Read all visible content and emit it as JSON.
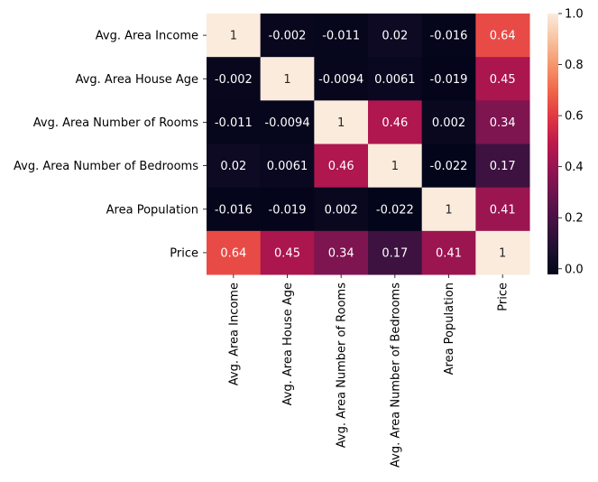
{
  "chart_data": {
    "type": "heatmap",
    "title": "",
    "xlabel": "",
    "ylabel": "",
    "row_labels": [
      "Avg. Area Income",
      "Avg. Area House Age",
      "Avg. Area Number of Rooms",
      "Avg. Area Number of Bedrooms",
      "Area Population",
      "Price"
    ],
    "col_labels": [
      "Avg. Area Income",
      "Avg. Area House Age",
      "Avg. Area Number of Rooms",
      "Avg. Area Number of Bedrooms",
      "Area Population",
      "Price"
    ],
    "values": [
      [
        1,
        -0.002,
        -0.011,
        0.02,
        -0.016,
        0.64
      ],
      [
        -0.002,
        1,
        -0.0094,
        0.0061,
        -0.019,
        0.45
      ],
      [
        -0.011,
        -0.0094,
        1,
        0.46,
        0.002,
        0.34
      ],
      [
        0.02,
        0.0061,
        0.46,
        1,
        -0.022,
        0.17
      ],
      [
        -0.016,
        -0.019,
        0.002,
        -0.022,
        1,
        0.41
      ],
      [
        0.64,
        0.45,
        0.34,
        0.17,
        0.41,
        1
      ]
    ],
    "annotations": [
      [
        "1",
        "-0.002",
        "-0.011",
        "0.02",
        "-0.016",
        "0.64"
      ],
      [
        "-0.002",
        "1",
        "-0.0094",
        "0.0061",
        "-0.019",
        "0.45"
      ],
      [
        "-0.011",
        "-0.0094",
        "1",
        "0.46",
        "0.002",
        "0.34"
      ],
      [
        "0.02",
        "0.0061",
        "0.46",
        "1",
        "-0.022",
        "0.17"
      ],
      [
        "-0.016",
        "-0.019",
        "0.002",
        "-0.022",
        "1",
        "0.41"
      ],
      [
        "0.64",
        "0.45",
        "0.34",
        "0.17",
        "0.41",
        "1"
      ]
    ],
    "colorbar": {
      "min": -0.022,
      "max": 1,
      "ticks": [
        0.0,
        0.2,
        0.4,
        0.6,
        0.8,
        1.0
      ],
      "tick_labels": [
        "0.0",
        "0.2",
        "0.4",
        "0.6",
        "0.8",
        "1.0"
      ],
      "colormap": "rocket"
    }
  }
}
